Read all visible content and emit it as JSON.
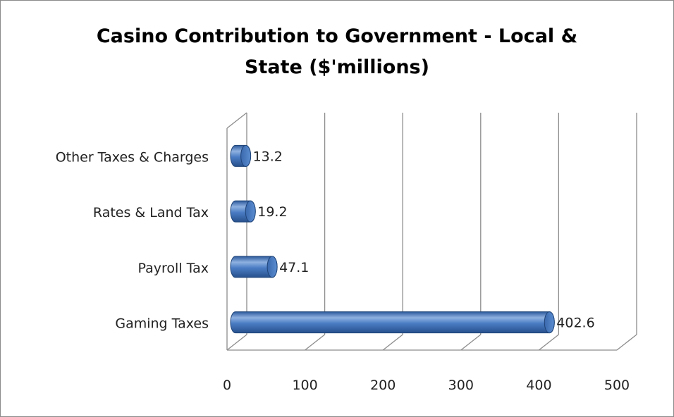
{
  "chart_data": {
    "type": "bar",
    "orientation": "horizontal",
    "style": "3d-cylinder",
    "title_lines": [
      "Casino Contribution to Government - Local &",
      "State ($'millions)"
    ],
    "categories": [
      "Gaming Taxes",
      "Payroll Tax",
      "Rates & Land Tax",
      "Other Taxes & Charges"
    ],
    "values": [
      402.6,
      47.1,
      19.2,
      13.2
    ],
    "value_labels": [
      "402.6",
      "47.1",
      "19.2",
      "13.2"
    ],
    "xlim": [
      0,
      500
    ],
    "xticks": [
      "0",
      "100",
      "200",
      "300",
      "400",
      "500"
    ],
    "grid": true,
    "legend": "none",
    "bar_color": "#4a7cc4"
  }
}
